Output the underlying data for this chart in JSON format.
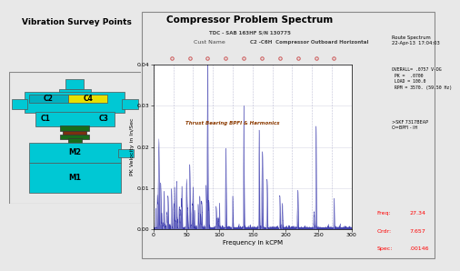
{
  "title_left": "Vibration Survey Points",
  "title_right": "Compressor Problem Spectrum",
  "bg_color": "#e8e8e8",
  "left_bg": "#ffffff",
  "right_bg": "#f5f5f5",
  "plot_bg": "#ffffff",
  "cyan": "#00c8d4",
  "cyan2": "#00b4c8",
  "yellow": "#e8e000",
  "dark_green": "#1a6b1a",
  "brown": "#7b3010",
  "header_line1": "TDC - SAB 163HF S/N 130775",
  "header_cust": "Cust Name",
  "header_line2": "C2 -C6H  Compressor Outboard Horizontal",
  "route_text": "Route Spectrum\n22-Apr-13  17:04:03",
  "overall_text": "OVERALL= .0757 V-DG\n PK =  .0700\n LOAD = 100.0\n RPM = 3570. (59.50 Hz)",
  "skf_text": ">SKF 7317BEAP\nO=BPFI - IH",
  "freq_label": "Freq:",
  "freq_val": "27.34",
  "order_label": "Ordr:",
  "order_val": "7.657",
  "spec_label": "Spec:",
  "spec_val": ".00146",
  "annotation": "Thrust Bearing BPFI & Harmonics",
  "xlabel": "Frequency in kCPM",
  "ylabel": "PK Velocity in In/Sec",
  "ylim": [
    0,
    0.04
  ],
  "xlim": [
    0,
    300
  ],
  "yticks": [
    0,
    0.01,
    0.02,
    0.03,
    0.04
  ],
  "xticks": [
    0,
    50,
    100,
    150,
    200,
    250,
    300
  ],
  "grid_color": "#b0b0cc",
  "line_color": "#3333aa",
  "marker_color": "#cc5555"
}
